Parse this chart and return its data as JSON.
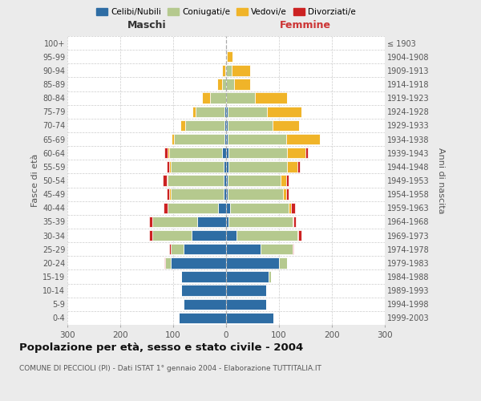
{
  "age_groups": [
    "0-4",
    "5-9",
    "10-14",
    "15-19",
    "20-24",
    "25-29",
    "30-34",
    "35-39",
    "40-44",
    "45-49",
    "50-54",
    "55-59",
    "60-64",
    "65-69",
    "70-74",
    "75-79",
    "80-84",
    "85-89",
    "90-94",
    "95-99",
    "100+"
  ],
  "birth_years": [
    "1999-2003",
    "1994-1998",
    "1989-1993",
    "1984-1988",
    "1979-1983",
    "1974-1978",
    "1969-1973",
    "1964-1968",
    "1959-1963",
    "1954-1958",
    "1949-1953",
    "1944-1948",
    "1939-1943",
    "1934-1938",
    "1929-1933",
    "1924-1928",
    "1919-1923",
    "1914-1918",
    "1909-1913",
    "1904-1908",
    "≤ 1903"
  ],
  "male_celibi": [
    90,
    80,
    85,
    85,
    105,
    80,
    65,
    55,
    15,
    5,
    5,
    5,
    8,
    3,
    3,
    3,
    0,
    0,
    0,
    0,
    0
  ],
  "male_coniugati": [
    0,
    0,
    0,
    0,
    10,
    25,
    75,
    85,
    95,
    100,
    105,
    100,
    100,
    95,
    75,
    55,
    30,
    8,
    2,
    0,
    0
  ],
  "male_vedovi": [
    0,
    0,
    0,
    0,
    0,
    0,
    0,
    0,
    0,
    2,
    2,
    2,
    3,
    5,
    8,
    5,
    15,
    8,
    5,
    0,
    0
  ],
  "male_divorziati": [
    0,
    0,
    0,
    0,
    2,
    3,
    5,
    5,
    8,
    5,
    8,
    5,
    5,
    0,
    0,
    0,
    0,
    0,
    0,
    0,
    0
  ],
  "fem_nubili": [
    90,
    75,
    75,
    80,
    100,
    65,
    20,
    5,
    8,
    3,
    3,
    5,
    5,
    3,
    3,
    3,
    0,
    0,
    0,
    0,
    0
  ],
  "fem_coniugate": [
    0,
    0,
    0,
    5,
    15,
    60,
    115,
    120,
    110,
    105,
    100,
    110,
    110,
    110,
    85,
    75,
    55,
    15,
    10,
    2,
    0
  ],
  "fem_vedove": [
    0,
    0,
    0,
    0,
    0,
    0,
    2,
    2,
    5,
    5,
    10,
    20,
    35,
    65,
    50,
    65,
    60,
    30,
    35,
    10,
    0
  ],
  "fem_divorziate": [
    0,
    0,
    0,
    0,
    0,
    2,
    5,
    5,
    8,
    5,
    5,
    5,
    5,
    0,
    0,
    0,
    0,
    0,
    0,
    0,
    0
  ],
  "color_cel": "#2e6da4",
  "color_con": "#b5c98e",
  "color_ved": "#f0b429",
  "color_div": "#cc2222",
  "legend_labels": [
    "Celibi/Nubili",
    "Coniugati/e",
    "Vedovi/e",
    "Divorziati/e"
  ],
  "title": "Popolazione per età, sesso e stato civile - 2004",
  "subtitle": "COMUNE DI PECCIOLI (PI) - Dati ISTAT 1° gennaio 2004 - Elaborazione TUTTITALIA.IT",
  "ylabel_left": "Fasce di età",
  "ylabel_right": "Anni di nascita",
  "label_maschi": "Maschi",
  "label_femmine": "Femmine",
  "xlim": 300,
  "bg_color": "#ebebeb",
  "plot_bg": "#ffffff"
}
